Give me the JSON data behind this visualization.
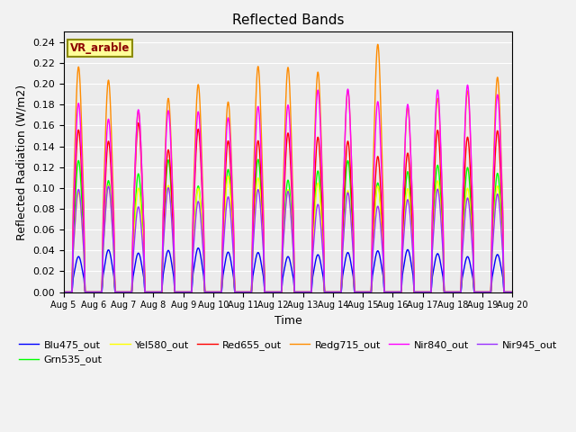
{
  "title": "Reflected Bands",
  "xlabel": "Time",
  "ylabel": "Reflected Radiation (W/m2)",
  "annotation": "VR_arable",
  "annotation_color": "#8B0000",
  "annotation_bg": "#FFFF99",
  "annotation_edge": "#8B8B00",
  "ylim": [
    0.0,
    0.25
  ],
  "yticks": [
    0.0,
    0.02,
    0.04,
    0.06,
    0.08,
    0.1,
    0.12,
    0.14,
    0.16,
    0.18,
    0.2,
    0.22,
    0.24
  ],
  "xtick_labels": [
    "Aug 5",
    "Aug 6",
    "Aug 7",
    "Aug 8",
    "Aug 9",
    "Aug 10",
    "Aug 11",
    "Aug 12",
    "Aug 13",
    "Aug 14",
    "Aug 15",
    "Aug 16",
    "Aug 17",
    "Aug 18",
    "Aug 19",
    "Aug 20"
  ],
  "series": [
    {
      "label": "Blu475_out",
      "color": "#0000FF",
      "peak": 0.038
    },
    {
      "label": "Grn535_out",
      "color": "#00FF00",
      "peak": 0.115
    },
    {
      "label": "Yel580_out",
      "color": "#FFFF00",
      "peak": 0.103
    },
    {
      "label": "Red655_out",
      "color": "#FF0000",
      "peak": 0.148
    },
    {
      "label": "Redg715_out",
      "color": "#FF8C00",
      "peak": 0.195
    },
    {
      "label": "Nir840_out",
      "color": "#FF00FF",
      "peak": 0.182
    },
    {
      "label": "Nir945_out",
      "color": "#9B30FF",
      "peak": 0.092
    }
  ],
  "fig_facecolor": "#F2F2F2",
  "ax_facecolor": "#EBEBEB",
  "grid_color": "#FFFFFF",
  "linewidth": 1.0
}
